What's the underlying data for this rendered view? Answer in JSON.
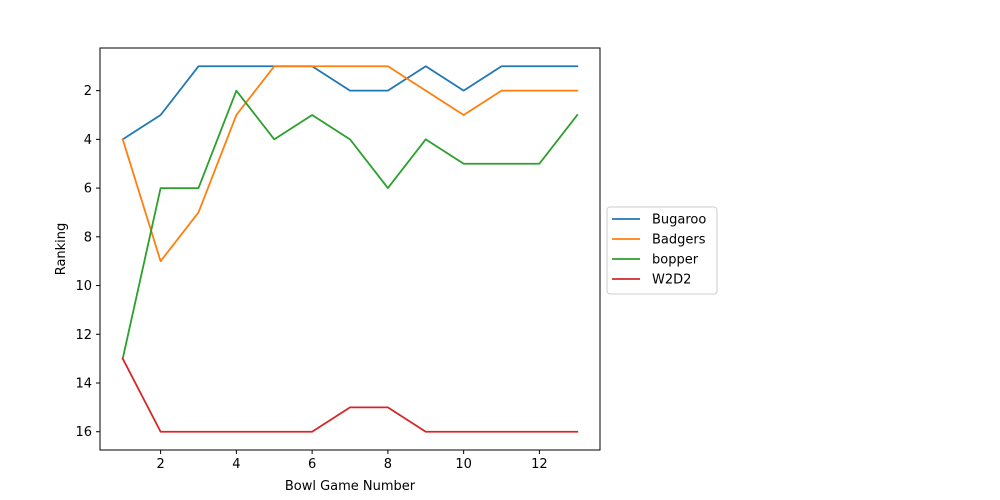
{
  "chart_data": {
    "type": "line",
    "title": "",
    "xlabel": "Bowl Game Number",
    "ylabel": "Ranking",
    "x": [
      1,
      2,
      3,
      4,
      5,
      6,
      7,
      8,
      9,
      10,
      11,
      12,
      13
    ],
    "xlim": [
      0.4,
      13.6
    ],
    "ylim": [
      16.75,
      0.25
    ],
    "y_inverted": true,
    "x_ticks": [
      2,
      4,
      6,
      8,
      10,
      12
    ],
    "y_ticks": [
      2,
      4,
      6,
      8,
      10,
      12,
      14,
      16
    ],
    "grid": false,
    "legend_position": "outside-right",
    "series": [
      {
        "name": "Bugaroo",
        "color": "#1f77b4",
        "values": [
          4,
          3,
          1,
          1,
          1,
          1,
          2,
          2,
          1,
          2,
          1,
          1,
          1
        ]
      },
      {
        "name": "Badgers",
        "color": "#ff7f0e",
        "values": [
          4,
          9,
          7,
          3,
          1,
          1,
          1,
          1,
          2,
          3,
          2,
          2,
          2
        ]
      },
      {
        "name": "bopper",
        "color": "#2ca02c",
        "values": [
          13,
          6,
          6,
          2,
          4,
          3,
          4,
          6,
          4,
          5,
          5,
          5,
          3
        ]
      },
      {
        "name": "W2D2",
        "color": "#d62728",
        "values": [
          13,
          16,
          16,
          16,
          16,
          16,
          15,
          15,
          16,
          16,
          16,
          16,
          16
        ]
      }
    ]
  }
}
